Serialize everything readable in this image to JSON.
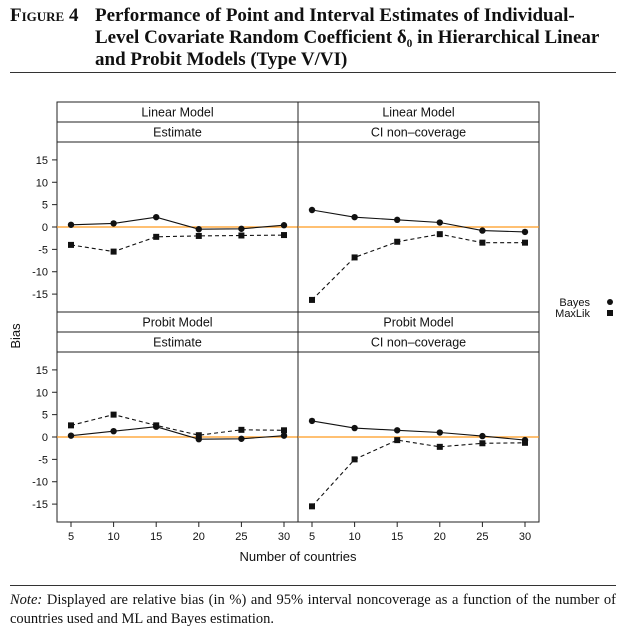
{
  "figure": {
    "label": "Figure 4",
    "heading": "Performance of Point and Interval Estimates of Individual-Level Covariate Random Coefficient δ₀ in Hierarchical Linear and Probit Models (Type V/VI)"
  },
  "note": {
    "lead": "Note:",
    "text": "Displayed are relative bias (in %) and 95% interval noncoverage as a function of the number of countries used and ML and Bayes estimation."
  },
  "colors": {
    "reference_line": "#ff9a1f",
    "series": "#111111",
    "strip": "#ffffff"
  },
  "chart_data": {
    "type": "line",
    "xlabel": "Number of countries",
    "ylabel": "Bias",
    "x": [
      5,
      10,
      15,
      20,
      25,
      30
    ],
    "ylim": [
      -19,
      19
    ],
    "yticks": [
      -15,
      -10,
      -5,
      0,
      5,
      10,
      15
    ],
    "xticks": [
      5,
      10,
      15,
      20,
      25,
      30
    ],
    "reference_line_y": 0,
    "grid": false,
    "legend": {
      "position": "right",
      "entries": [
        {
          "name": "Bayes",
          "marker": "circle",
          "line": "solid"
        },
        {
          "name": "MaxLik",
          "marker": "square",
          "line": "dashed"
        }
      ]
    },
    "panels": [
      {
        "model": "Linear Model",
        "measure": "Estimate",
        "row": 0,
        "col": 0,
        "series": [
          {
            "name": "Bayes",
            "values": [
              0.5,
              0.8,
              2.2,
              -0.5,
              -0.4,
              0.4
            ]
          },
          {
            "name": "MaxLik",
            "values": [
              -4.0,
              -5.5,
              -2.2,
              -2.0,
              -1.9,
              -1.8
            ]
          }
        ]
      },
      {
        "model": "Linear Model",
        "measure": "CI non–coverage",
        "row": 0,
        "col": 1,
        "series": [
          {
            "name": "Bayes",
            "values": [
              3.8,
              2.2,
              1.6,
              1.0,
              -0.8,
              -1.1
            ]
          },
          {
            "name": "MaxLik",
            "values": [
              -16.3,
              -6.8,
              -3.3,
              -1.6,
              -3.5,
              -3.5
            ]
          }
        ]
      },
      {
        "model": "Probit Model",
        "measure": "Estimate",
        "row": 1,
        "col": 0,
        "series": [
          {
            "name": "Bayes",
            "values": [
              0.3,
              1.3,
              2.3,
              -0.5,
              -0.4,
              0.3
            ]
          },
          {
            "name": "MaxLik",
            "values": [
              2.6,
              5.0,
              2.6,
              0.4,
              1.6,
              1.5
            ]
          }
        ]
      },
      {
        "model": "Probit Model",
        "measure": "CI non–coverage",
        "row": 1,
        "col": 1,
        "series": [
          {
            "name": "Bayes",
            "values": [
              3.6,
              2.0,
              1.5,
              1.0,
              0.2,
              -0.7
            ]
          },
          {
            "name": "MaxLik",
            "values": [
              -15.5,
              -5.0,
              -0.7,
              -2.2,
              -1.4,
              -1.3
            ]
          }
        ]
      }
    ]
  }
}
